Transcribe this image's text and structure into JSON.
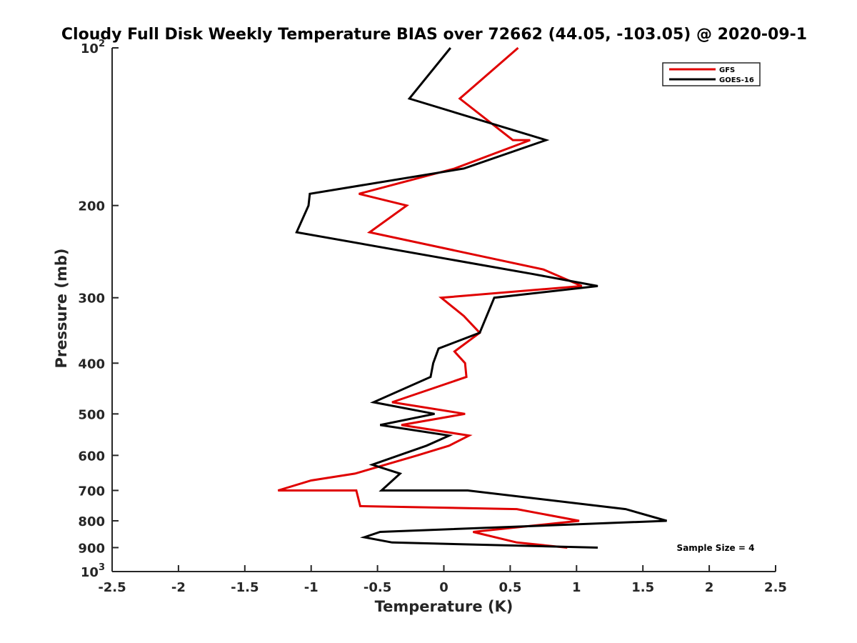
{
  "chart_data": {
    "type": "line",
    "title": "Cloudy Full Disk Weekly Temperature BIAS over 72662 (44.05, -103.05) @ 2020-09-1",
    "xlabel": "Temperature (K)",
    "ylabel": "Pressure (mb)",
    "xlim": [
      -2.5,
      2.5
    ],
    "ylim": [
      100,
      1000
    ],
    "y_scale": "log",
    "y_reversed": true,
    "grid": false,
    "legend_position": "top-right",
    "annotation": "Sample Size = 4",
    "x_ticks": [
      {
        "value": -2.5,
        "label": "-2.5"
      },
      {
        "value": -2,
        "label": "-2"
      },
      {
        "value": -1.5,
        "label": "-1.5"
      },
      {
        "value": -1,
        "label": "-1"
      },
      {
        "value": -0.5,
        "label": "-0.5"
      },
      {
        "value": 0,
        "label": "0"
      },
      {
        "value": 0.5,
        "label": "0.5"
      },
      {
        "value": 1,
        "label": "1"
      },
      {
        "value": 1.5,
        "label": "1.5"
      },
      {
        "value": 2,
        "label": "2"
      },
      {
        "value": 2.5,
        "label": "2.5"
      }
    ],
    "y_ticks": [
      {
        "value": 100,
        "label": "10",
        "sup": "2"
      },
      {
        "value": 200,
        "label": "200"
      },
      {
        "value": 300,
        "label": "300"
      },
      {
        "value": 400,
        "label": "400"
      },
      {
        "value": 500,
        "label": "500"
      },
      {
        "value": 600,
        "label": "600"
      },
      {
        "value": 700,
        "label": "700"
      },
      {
        "value": 800,
        "label": "800"
      },
      {
        "value": 900,
        "label": "900"
      },
      {
        "value": 1000,
        "label": "10",
        "sup": "3"
      }
    ],
    "series": [
      {
        "name": "GFS",
        "color": "#e00000",
        "points": [
          {
            "x": 0.56,
            "p": 100
          },
          {
            "x": 0.12,
            "p": 125
          },
          {
            "x": 0.52,
            "p": 150
          },
          {
            "x": 0.65,
            "p": 150
          },
          {
            "x": 0.08,
            "p": 170
          },
          {
            "x": -0.64,
            "p": 190
          },
          {
            "x": -0.28,
            "p": 200
          },
          {
            "x": -0.56,
            "p": 225
          },
          {
            "x": 0.75,
            "p": 265
          },
          {
            "x": 1.04,
            "p": 285
          },
          {
            "x": -0.02,
            "p": 300
          },
          {
            "x": 0.15,
            "p": 325
          },
          {
            "x": 0.27,
            "p": 350
          },
          {
            "x": 0.08,
            "p": 380
          },
          {
            "x": 0.16,
            "p": 400
          },
          {
            "x": 0.17,
            "p": 425
          },
          {
            "x": -0.39,
            "p": 475
          },
          {
            "x": 0.16,
            "p": 500
          },
          {
            "x": -0.32,
            "p": 525
          },
          {
            "x": 0.19,
            "p": 550
          },
          {
            "x": 0.04,
            "p": 575
          },
          {
            "x": -0.2,
            "p": 600
          },
          {
            "x": -0.67,
            "p": 650
          },
          {
            "x": -1.0,
            "p": 670
          },
          {
            "x": -1.25,
            "p": 700
          },
          {
            "x": -0.66,
            "p": 700
          },
          {
            "x": -0.63,
            "p": 750
          },
          {
            "x": 0.55,
            "p": 760
          },
          {
            "x": 1.02,
            "p": 800
          },
          {
            "x": 0.22,
            "p": 840
          },
          {
            "x": 0.55,
            "p": 880
          },
          {
            "x": 0.93,
            "p": 900
          }
        ]
      },
      {
        "name": "GOES-16",
        "color": "#000000",
        "points": [
          {
            "x": 0.05,
            "p": 100
          },
          {
            "x": -0.26,
            "p": 125
          },
          {
            "x": 0.77,
            "p": 150
          },
          {
            "x": 0.15,
            "p": 170
          },
          {
            "x": -1.01,
            "p": 190
          },
          {
            "x": -1.02,
            "p": 200
          },
          {
            "x": -1.11,
            "p": 225
          },
          {
            "x": 0.66,
            "p": 270
          },
          {
            "x": 1.16,
            "p": 285
          },
          {
            "x": 0.38,
            "p": 300
          },
          {
            "x": 0.27,
            "p": 350
          },
          {
            "x": -0.04,
            "p": 375
          },
          {
            "x": -0.08,
            "p": 400
          },
          {
            "x": -0.1,
            "p": 425
          },
          {
            "x": -0.53,
            "p": 475
          },
          {
            "x": -0.07,
            "p": 500
          },
          {
            "x": -0.48,
            "p": 525
          },
          {
            "x": 0.04,
            "p": 550
          },
          {
            "x": -0.13,
            "p": 575
          },
          {
            "x": -0.54,
            "p": 625
          },
          {
            "x": -0.33,
            "p": 650
          },
          {
            "x": -0.47,
            "p": 700
          },
          {
            "x": 0.18,
            "p": 700
          },
          {
            "x": 1.37,
            "p": 760
          },
          {
            "x": 1.68,
            "p": 800
          },
          {
            "x": -0.48,
            "p": 840
          },
          {
            "x": -0.6,
            "p": 860
          },
          {
            "x": -0.39,
            "p": 880
          },
          {
            "x": 1.16,
            "p": 900
          }
        ]
      }
    ]
  }
}
